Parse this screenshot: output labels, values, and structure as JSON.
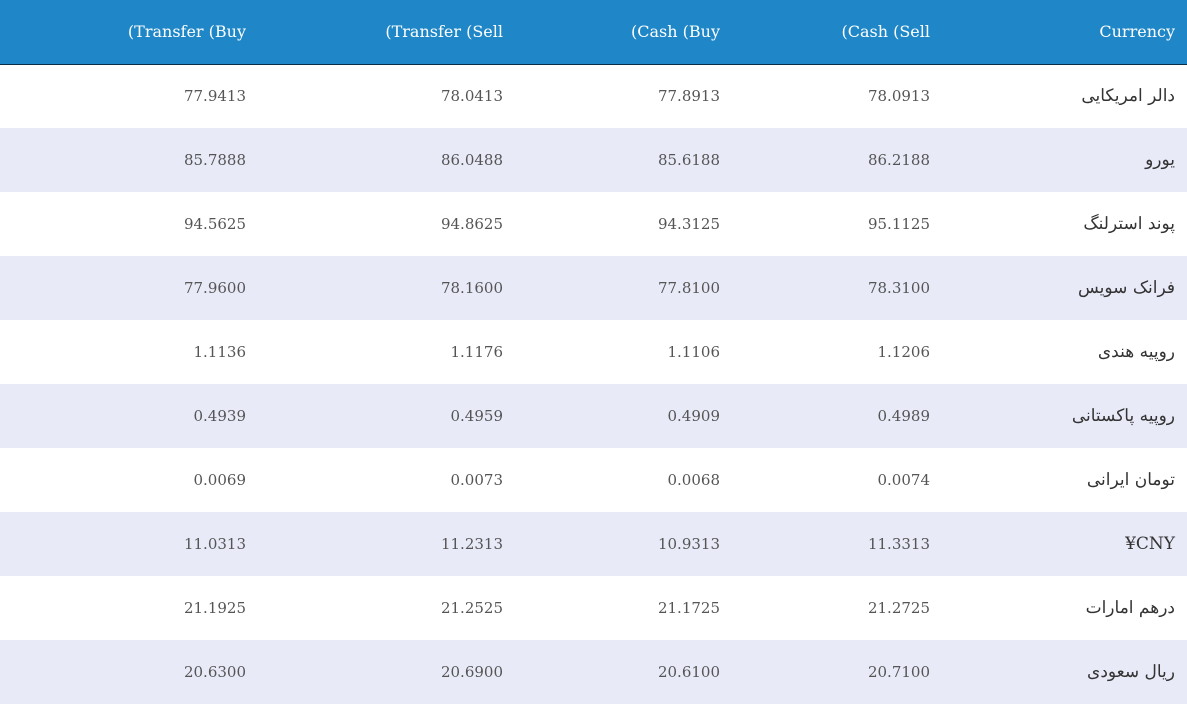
{
  "headers": {
    "transfer_buy": "(Transfer (Buy",
    "transfer_sell": "(Transfer (Sell",
    "cash_buy": "(Cash (Buy",
    "cash_sell": "(Cash (Sell",
    "currency": "Currency"
  },
  "rows": [
    {
      "currency": "دالر امریکایی",
      "cash_sell": "78.0913",
      "cash_buy": "77.8913",
      "transfer_sell": "78.0413",
      "transfer_buy": "77.9413"
    },
    {
      "currency": "یورو",
      "cash_sell": "86.2188",
      "cash_buy": "85.6188",
      "transfer_sell": "86.0488",
      "transfer_buy": "85.7888"
    },
    {
      "currency": "پوند استرلنگ",
      "cash_sell": "95.1125",
      "cash_buy": "94.3125",
      "transfer_sell": "94.8625",
      "transfer_buy": "94.5625"
    },
    {
      "currency": "فرانک سویس",
      "cash_sell": "78.3100",
      "cash_buy": "77.8100",
      "transfer_sell": "78.1600",
      "transfer_buy": "77.9600"
    },
    {
      "currency": "روپیه هندی",
      "cash_sell": "1.1206",
      "cash_buy": "1.1106",
      "transfer_sell": "1.1176",
      "transfer_buy": "1.1136"
    },
    {
      "currency": "روپیه پاکستانی",
      "cash_sell": "0.4989",
      "cash_buy": "0.4909",
      "transfer_sell": "0.4959",
      "transfer_buy": "0.4939"
    },
    {
      "currency": "تومان ایرانی",
      "cash_sell": "0.0074",
      "cash_buy": "0.0068",
      "transfer_sell": "0.0073",
      "transfer_buy": "0.0069"
    },
    {
      "currency": "¥CNY",
      "cash_sell": "11.3313",
      "cash_buy": "10.9313",
      "transfer_sell": "11.2313",
      "transfer_buy": "11.0313"
    },
    {
      "currency": "درهم امارات",
      "cash_sell": "21.2725",
      "cash_buy": "21.1725",
      "transfer_sell": "21.2525",
      "transfer_buy": "21.1925"
    },
    {
      "currency": "ریال سعودی",
      "cash_sell": "20.7100",
      "cash_buy": "20.6100",
      "transfer_sell": "20.6900",
      "transfer_buy": "20.6300"
    }
  ],
  "colors": {
    "header_bg": "#1f87c7",
    "row_alt_bg": "#e8eaf8"
  }
}
